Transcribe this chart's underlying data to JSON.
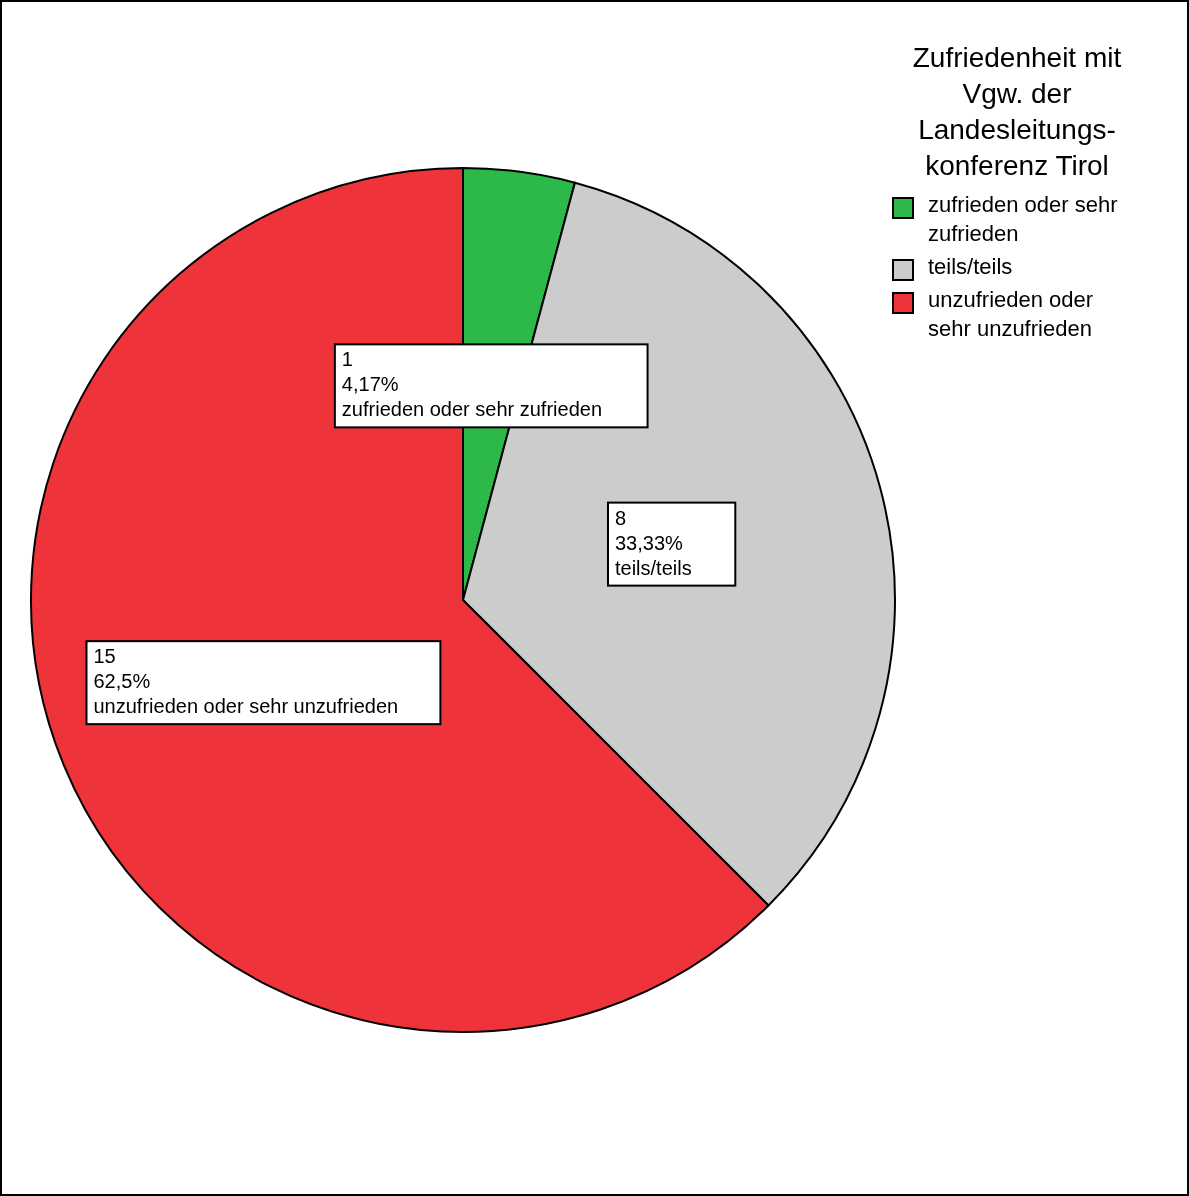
{
  "chart_data": {
    "type": "pie",
    "legend_title": "Zufriedenheit mit Vgw. der Landesleitungs- konferenz Tirol",
    "categories": [
      "zufrieden oder sehr zufrieden",
      "teils/teils",
      "unzufrieden oder sehr unzufrieden"
    ],
    "values": [
      4.17,
      33.33,
      62.5
    ],
    "annotations": [
      "1",
      "8",
      "15"
    ],
    "colors": [
      "#2db84a",
      "#cccccc",
      "#ef333a"
    ],
    "value_labels": [
      "4,17%",
      "33,33%",
      "62,5%"
    ],
    "legend": "top right"
  }
}
